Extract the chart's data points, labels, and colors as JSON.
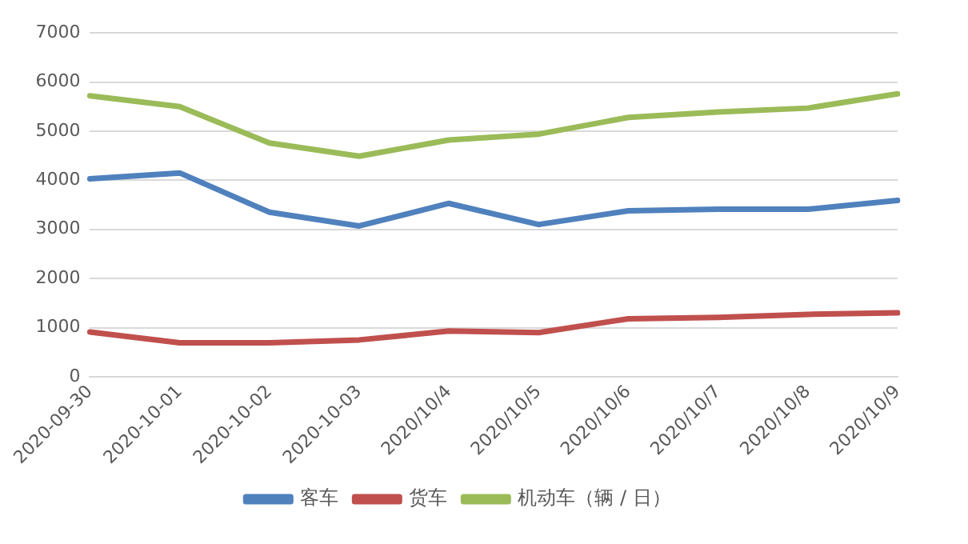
{
  "chart_data": {
    "type": "line",
    "categories": [
      "2020-09-30",
      "2020-10-01",
      "2020-10-02",
      "2020-10-03",
      "2020/10/4",
      "2020/10/5",
      "2020/10/6",
      "2020/10/7",
      "2020/10/8",
      "2020/10/9"
    ],
    "series": [
      {
        "name": "客车",
        "color": "#4f81bd",
        "values": [
          4030,
          4150,
          3350,
          3070,
          3530,
          3100,
          3380,
          3410,
          3410,
          3590
        ]
      },
      {
        "name": "货车",
        "color": "#c0504d",
        "values": [
          910,
          690,
          690,
          750,
          930,
          900,
          1180,
          1210,
          1270,
          1300
        ]
      },
      {
        "name": "机动车（辆 / 日）",
        "color": "#9bbb59",
        "values": [
          5720,
          5500,
          4760,
          4490,
          4820,
          4940,
          5280,
          5390,
          5470,
          5760
        ]
      }
    ],
    "ylim": [
      0,
      7000
    ],
    "yticks": [
      0,
      1000,
      2000,
      3000,
      4000,
      5000,
      6000,
      7000
    ],
    "grid": "y",
    "legend": "bottom",
    "marker": "none",
    "line_style": "solid"
  }
}
